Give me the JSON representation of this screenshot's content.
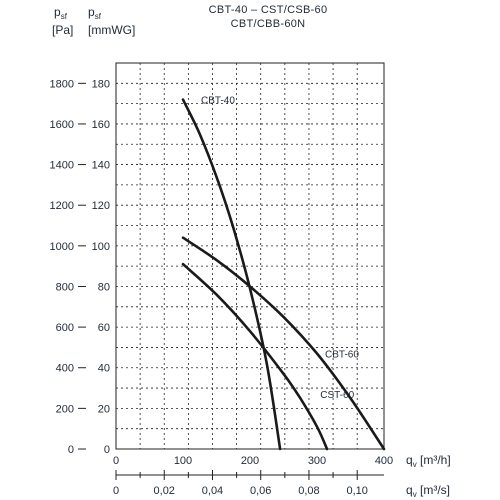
{
  "chart_data": {
    "type": "line",
    "title_lines": [
      "CBT-40 – CST/CSB-60",
      "CBT/CBB-60N"
    ],
    "left_axis": {
      "symbol": "p",
      "subscript": "sf",
      "unit": "[Pa]",
      "ticks": [
        "1800",
        "1600",
        "1400",
        "1200",
        "1000",
        "800",
        "600",
        "400",
        "200",
        "0"
      ],
      "tick_values": [
        1800,
        1600,
        1400,
        1200,
        1000,
        800,
        600,
        400,
        200,
        0
      ]
    },
    "right_axis": {
      "symbol": "p",
      "subscript": "sf",
      "unit": "[mmWG]",
      "ticks": [
        "180",
        "160",
        "140",
        "120",
        "100",
        "80",
        "60",
        "40",
        "20",
        "0"
      ],
      "tick_values": [
        180,
        160,
        140,
        120,
        100,
        80,
        60,
        40,
        20,
        0
      ]
    },
    "ylim_mmwg": [
      0,
      190
    ],
    "x_axis_primary": {
      "symbol": "q",
      "subscript": "v",
      "unit": "[m³/h]",
      "ticks": [
        "0",
        "100",
        "200",
        "300",
        "400"
      ],
      "tick_values": [
        0,
        100,
        200,
        300,
        400
      ]
    },
    "x_axis_secondary": {
      "symbol": "q",
      "subscript": "v",
      "unit": "[m³/s]",
      "ticks": [
        "0",
        "0,02",
        "0,04",
        "0,06",
        "0,08",
        "0,10"
      ],
      "tick_values": [
        0,
        0.02,
        0.04,
        0.06,
        0.08,
        0.1
      ]
    },
    "xlim_m3h": [
      0,
      400
    ],
    "grid": true,
    "series": [
      {
        "name": "CBT-40",
        "x": [
          100,
          125,
          150,
          175,
          200,
          225,
          245
        ],
        "y": [
          172,
          155,
          134,
          109,
          79,
          42,
          0
        ]
      },
      {
        "name": "CBT-60",
        "x": [
          100,
          150,
          200,
          250,
          300,
          350,
          400
        ],
        "y": [
          104,
          93,
          80,
          65,
          47,
          25,
          0
        ]
      },
      {
        "name": "CST-60",
        "x": [
          100,
          150,
          200,
          250,
          275,
          300,
          315
        ],
        "y": [
          91,
          76,
          58,
          37,
          25,
          11,
          0
        ]
      }
    ]
  }
}
